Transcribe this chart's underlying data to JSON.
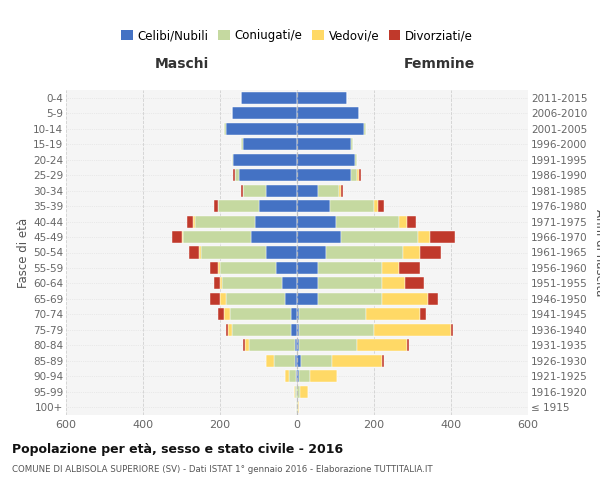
{
  "age_groups": [
    "100+",
    "95-99",
    "90-94",
    "85-89",
    "80-84",
    "75-79",
    "70-74",
    "65-69",
    "60-64",
    "55-59",
    "50-54",
    "45-49",
    "40-44",
    "35-39",
    "30-34",
    "25-29",
    "20-24",
    "15-19",
    "10-14",
    "5-9",
    "0-4"
  ],
  "birth_years": [
    "≤ 1915",
    "1916-1920",
    "1921-1925",
    "1926-1930",
    "1931-1935",
    "1936-1940",
    "1941-1945",
    "1946-1950",
    "1951-1955",
    "1956-1960",
    "1961-1965",
    "1966-1970",
    "1971-1975",
    "1976-1980",
    "1981-1985",
    "1986-1990",
    "1991-1995",
    "1996-2000",
    "2001-2005",
    "2006-2010",
    "2011-2015"
  ],
  "male_celibi": [
    1,
    1,
    2,
    5,
    5,
    15,
    15,
    30,
    40,
    55,
    80,
    120,
    110,
    100,
    80,
    150,
    165,
    140,
    185,
    170,
    145
  ],
  "male_coniugati": [
    2,
    5,
    20,
    55,
    120,
    155,
    160,
    155,
    155,
    145,
    170,
    175,
    155,
    105,
    60,
    10,
    5,
    5,
    5,
    0,
    0
  ],
  "male_vedovi": [
    0,
    2,
    10,
    20,
    10,
    10,
    15,
    15,
    5,
    5,
    5,
    5,
    5,
    0,
    0,
    0,
    0,
    0,
    0,
    0,
    0
  ],
  "male_divorziati": [
    0,
    0,
    0,
    0,
    5,
    5,
    15,
    25,
    15,
    20,
    25,
    25,
    15,
    10,
    5,
    5,
    0,
    0,
    0,
    0,
    0
  ],
  "female_nubili": [
    1,
    1,
    5,
    10,
    5,
    5,
    5,
    55,
    55,
    55,
    75,
    115,
    100,
    85,
    55,
    140,
    150,
    140,
    175,
    160,
    130
  ],
  "female_coniugate": [
    2,
    8,
    30,
    80,
    150,
    195,
    175,
    165,
    165,
    165,
    200,
    200,
    165,
    115,
    55,
    15,
    5,
    5,
    5,
    0,
    0
  ],
  "female_vedove": [
    2,
    20,
    70,
    130,
    130,
    200,
    140,
    120,
    60,
    45,
    45,
    30,
    20,
    10,
    5,
    5,
    0,
    0,
    0,
    0,
    0
  ],
  "female_divorziate": [
    0,
    0,
    0,
    5,
    5,
    5,
    15,
    25,
    50,
    55,
    55,
    65,
    25,
    15,
    5,
    5,
    0,
    0,
    0,
    0,
    0
  ],
  "color_celibi": "#4472C4",
  "color_coniugati": "#C5D9A0",
  "color_vedovi": "#FFD966",
  "color_divorziati": "#C0392B",
  "legend_labels": [
    "Celibi/Nubili",
    "Coniugati/e",
    "Vedovi/e",
    "Divorziati/e"
  ],
  "title": "Popolazione per età, sesso e stato civile - 2016",
  "subtitle": "COMUNE DI ALBISOLA SUPERIORE (SV) - Dati ISTAT 1° gennaio 2016 - Elaborazione TUTTITALIA.IT",
  "ylabel_left": "Fasce di età",
  "ylabel_right": "Anni di nascita",
  "label_maschi": "Maschi",
  "label_femmine": "Femmine",
  "xlim": 600,
  "bg_color": "#ffffff",
  "plot_bg": "#f5f5f5",
  "grid_color": "#cccccc",
  "bar_height": 0.78
}
